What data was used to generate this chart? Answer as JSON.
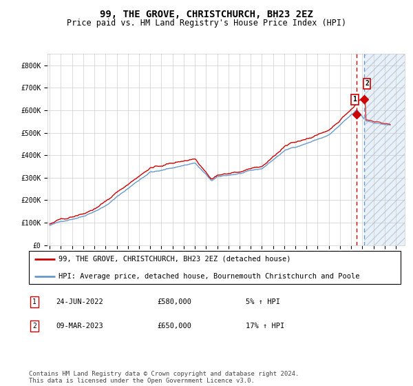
{
  "title": "99, THE GROVE, CHRISTCHURCH, BH23 2EZ",
  "subtitle": "Price paid vs. HM Land Registry's House Price Index (HPI)",
  "legend_line1": "99, THE GROVE, CHRISTCHURCH, BH23 2EZ (detached house)",
  "legend_line2": "HPI: Average price, detached house, Bournemouth Christchurch and Poole",
  "annotation1_date": "24-JUN-2022",
  "annotation1_price": "£580,000",
  "annotation1_hpi": "5% ↑ HPI",
  "annotation2_date": "09-MAR-2023",
  "annotation2_price": "£650,000",
  "annotation2_hpi": "17% ↑ HPI",
  "footer": "Contains HM Land Registry data © Crown copyright and database right 2024.\nThis data is licensed under the Open Government Licence v3.0.",
  "year_start": 1995,
  "year_end": 2026,
  "xlim_left": 1994.8,
  "xlim_right": 2026.8,
  "ylim": [
    0,
    850000
  ],
  "yticks": [
    0,
    100000,
    200000,
    300000,
    400000,
    500000,
    600000,
    700000,
    800000
  ],
  "ytick_labels": [
    "£0",
    "£100K",
    "£200K",
    "£300K",
    "£400K",
    "£500K",
    "£600K",
    "£700K",
    "£800K"
  ],
  "red_color": "#cc0000",
  "blue_color": "#6699cc",
  "marker1_x": 2022.49,
  "marker1_y": 580000,
  "marker2_x": 2023.19,
  "marker2_y": 650000,
  "vline1_x": 2022.49,
  "vline2_x": 2023.19,
  "shade_start": 2023.19,
  "shade_end": 2027.0,
  "bg_color": "#ffffff",
  "grid_color": "#cccccc",
  "title_fontsize": 10,
  "subtitle_fontsize": 8.5,
  "tick_fontsize": 7,
  "legend_fontsize": 7.5,
  "footer_fontsize": 6.5
}
